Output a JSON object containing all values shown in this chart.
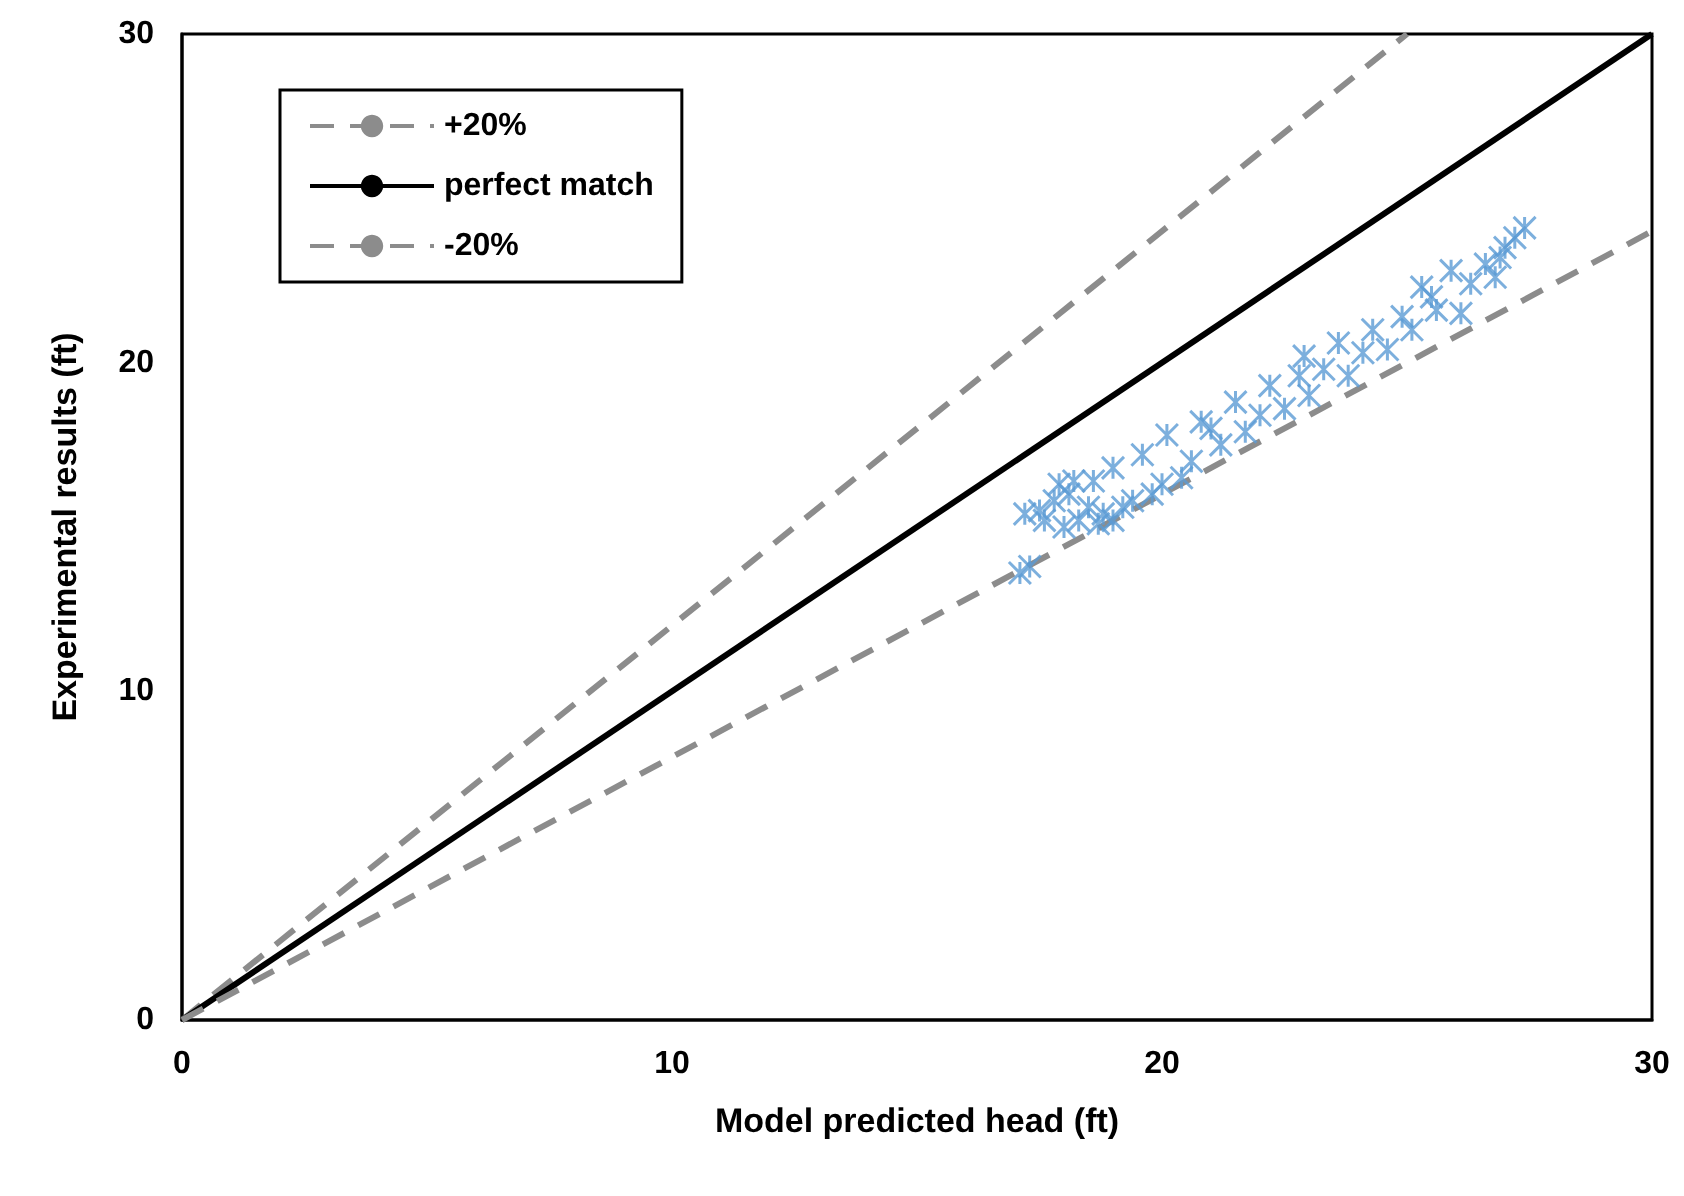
{
  "chart_data": {
    "type": "scatter",
    "xlabel": "Model predicted head (ft)",
    "ylabel": "Experimental results (ft)",
    "xlim": [
      0,
      30
    ],
    "ylim": [
      0,
      30
    ],
    "xticks": [
      0,
      10,
      20,
      30
    ],
    "yticks": [
      0,
      10,
      20,
      30
    ],
    "grid": false,
    "legend": "top left",
    "series": [
      {
        "name": "+20%",
        "type": "line",
        "color": "#8c8c8c",
        "line_style": "dashed",
        "marker": "none",
        "x": [
          0,
          25
        ],
        "values": [
          0,
          30
        ]
      },
      {
        "name": "perfect match",
        "type": "line",
        "color": "#000000",
        "line_style": "solid",
        "marker": "none",
        "x": [
          0,
          30
        ],
        "values": [
          0,
          30
        ]
      },
      {
        "name": "-20%",
        "type": "line",
        "color": "#8c8c8c",
        "line_style": "dashed",
        "marker": "none",
        "x": [
          0,
          30
        ],
        "values": [
          0,
          24
        ]
      },
      {
        "color": "#5b9bd5",
        "marker": "cross",
        "x": [
          17.1,
          17.3,
          17.2,
          17.5,
          17.6,
          17.8,
          17.9,
          18.0,
          18.1,
          18.2,
          18.3,
          18.5,
          18.6,
          18.7,
          18.8,
          19.0,
          19.2,
          19.4,
          19.6,
          19.8,
          20.0,
          20.1,
          20.4,
          20.6,
          20.8,
          21.2,
          21.5,
          21.7,
          22.0,
          22.2,
          22.5,
          22.8,
          23.0,
          23.3,
          23.6,
          23.8,
          24.1,
          24.3,
          24.6,
          24.9,
          25.1,
          25.3,
          25.6,
          25.9,
          26.1,
          26.3,
          26.6,
          26.8,
          27.0,
          27.2,
          27.4,
          26.9,
          25.5,
          22.9,
          21.0,
          19.0
        ],
        "values": [
          13.6,
          13.8,
          15.4,
          15.5,
          15.2,
          15.8,
          16.3,
          15.0,
          16.0,
          16.4,
          15.2,
          15.6,
          16.4,
          15.1,
          15.4,
          16.8,
          15.6,
          15.8,
          17.2,
          16.0,
          16.3,
          17.8,
          16.5,
          17.0,
          18.2,
          17.5,
          18.8,
          17.9,
          18.4,
          19.3,
          18.6,
          19.6,
          19.0,
          19.8,
          20.6,
          19.6,
          20.3,
          21.0,
          20.4,
          21.4,
          21.0,
          22.3,
          21.6,
          22.8,
          21.5,
          22.4,
          23.0,
          22.6,
          23.5,
          23.8,
          24.1,
          23.2,
          22.0,
          20.2,
          18.0,
          15.2
        ]
      }
    ]
  }
}
